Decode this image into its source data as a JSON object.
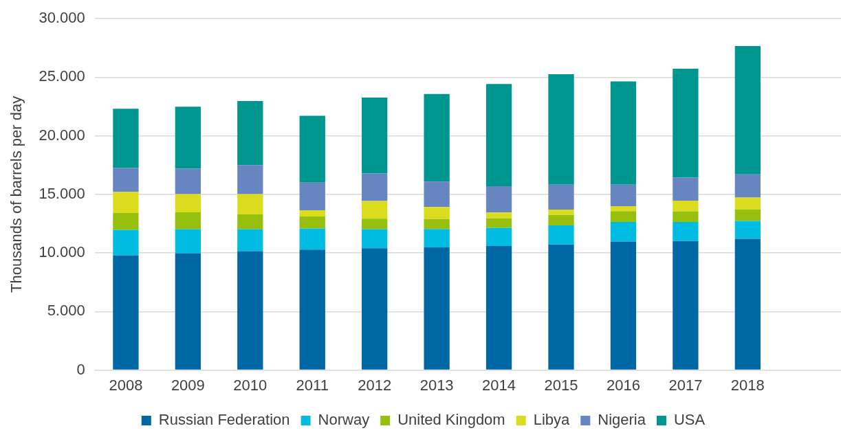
{
  "chart_data": {
    "type": "bar",
    "stacked": true,
    "ylabel": "Thousands of barrels per day",
    "categories": [
      "2008",
      "2009",
      "2010",
      "2011",
      "2012",
      "2013",
      "2014",
      "2015",
      "2016",
      "2017",
      "2018",
      null
    ],
    "series": [
      {
        "name": "Russian Federation",
        "color": "#0067a5",
        "values": [
          9800,
          9980,
          10160,
          10280,
          10400,
          10480,
          10590,
          10720,
          10970,
          11020,
          11210,
          null
        ]
      },
      {
        "name": "Norway",
        "color": "#00bce3",
        "values": [
          2170,
          2050,
          1870,
          1810,
          1630,
          1570,
          1560,
          1630,
          1680,
          1630,
          1530,
          null
        ]
      },
      {
        "name": "United Kingdom",
        "color": "#97bf0d",
        "values": [
          1440,
          1440,
          1260,
          1020,
          900,
          840,
          800,
          900,
          920,
          900,
          980,
          null
        ]
      },
      {
        "name": "Libya",
        "color": "#dcdc1e",
        "values": [
          1800,
          1560,
          1740,
          540,
          1500,
          1030,
          510,
          450,
          430,
          920,
          1010,
          null
        ]
      },
      {
        "name": "Nigeria",
        "color": "#6785c1",
        "values": [
          2050,
          2170,
          2470,
          2350,
          2350,
          2170,
          2240,
          2130,
          1830,
          1960,
          1980,
          null
        ]
      },
      {
        "name": "USA",
        "color": "#009690",
        "values": [
          5050,
          5290,
          5470,
          5710,
          6490,
          7490,
          8720,
          9430,
          8820,
          9300,
          10950,
          null
        ]
      }
    ],
    "ylim": [
      0,
      30000
    ],
    "yticks": [
      {
        "value": 0,
        "label": "0"
      },
      {
        "value": 5000,
        "label": "5.000"
      },
      {
        "value": 10000,
        "label": "10.000"
      },
      {
        "value": 15000,
        "label": "15.000"
      },
      {
        "value": 20000,
        "label": "20.000"
      },
      {
        "value": 25000,
        "label": "25.000"
      },
      {
        "value": 30000,
        "label": "30.000"
      }
    ],
    "grid": "y",
    "legend": "bottom"
  }
}
